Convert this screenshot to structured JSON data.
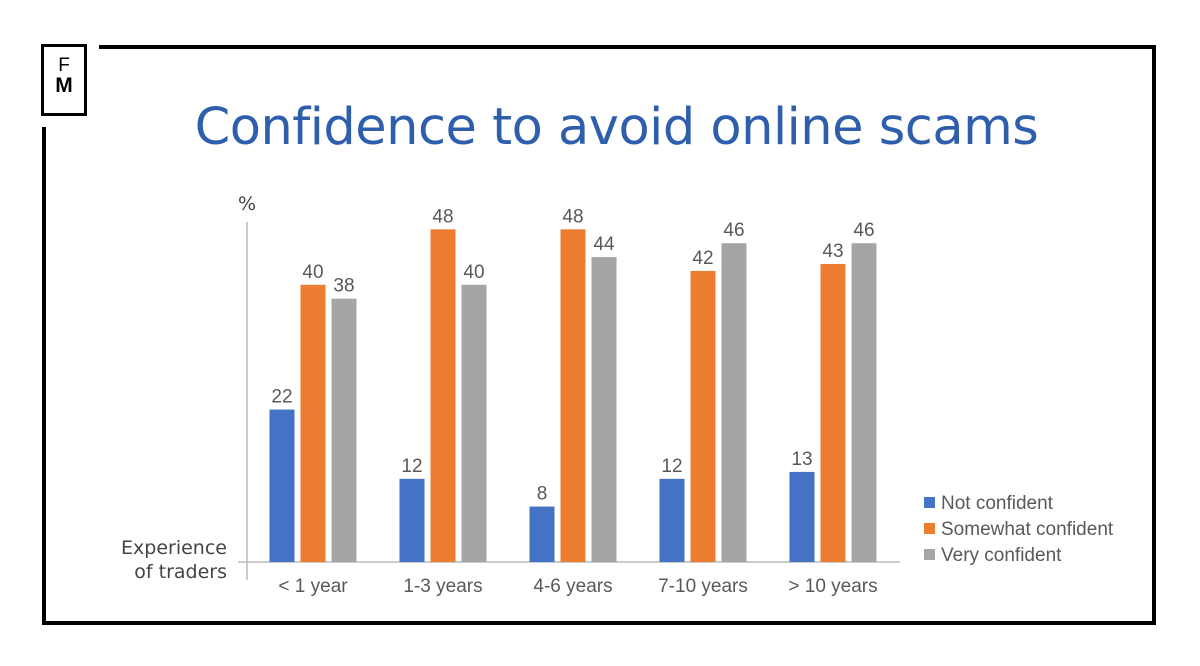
{
  "logo": {
    "line1": "F",
    "line2": "M"
  },
  "chart_data": {
    "type": "bar",
    "title": "Confidence to avoid online scams",
    "ylabel": "%",
    "xlabel": "Experience of traders",
    "xlabel_lines": [
      "Experience",
      "of traders"
    ],
    "categories": [
      "< 1 year",
      "1-3 years",
      "4-6 years",
      "7-10 years",
      "> 10 years"
    ],
    "series": [
      {
        "name": "Not confident",
        "color": "#4472c4",
        "values": [
          22,
          12,
          8,
          12,
          13
        ]
      },
      {
        "name": "Somewhat confident",
        "color": "#ed7d31",
        "values": [
          40,
          48,
          48,
          42,
          43
        ]
      },
      {
        "name": "Very confident",
        "color": "#a5a5a5",
        "values": [
          38,
          40,
          44,
          46,
          46
        ]
      }
    ],
    "ylim": [
      0,
      50
    ],
    "grid": false,
    "data_labels": true,
    "legend": "right"
  }
}
